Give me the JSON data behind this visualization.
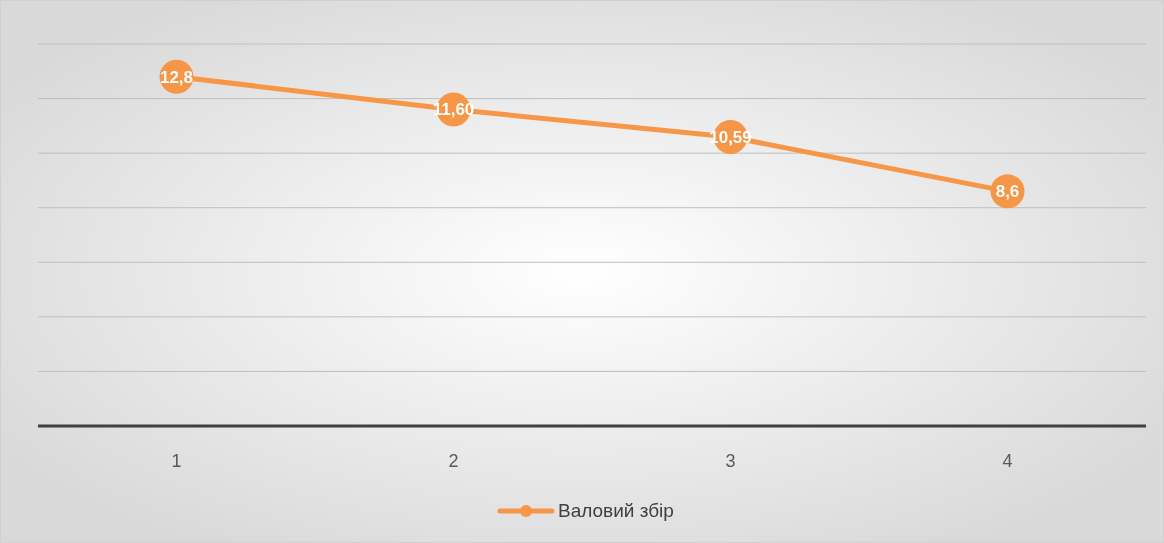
{
  "chart_data": {
    "type": "line",
    "categories": [
      "1",
      "2",
      "3",
      "4"
    ],
    "series": [
      {
        "name": "Валовий збір",
        "color": "#f79646",
        "values": [
          12.8,
          11.6,
          10.59,
          8.6
        ],
        "value_labels": [
          "12,8",
          "11,60",
          "10,59",
          "8,6"
        ]
      }
    ],
    "ylim": [
      0,
      14
    ],
    "yticks": [
      {
        "value": 0,
        "label": null
      },
      {
        "value": 2,
        "label": null
      },
      {
        "value": 4,
        "label": null
      },
      {
        "value": 6,
        "label": null
      },
      {
        "value": 8,
        "label": null
      },
      {
        "value": 10,
        "label": null
      },
      {
        "value": 12,
        "label": null
      },
      {
        "value": 14,
        "label": null
      }
    ],
    "tick_labels": "x",
    "grid": "y",
    "legend": "bottom",
    "marker": "circle",
    "line_style": "solid"
  }
}
